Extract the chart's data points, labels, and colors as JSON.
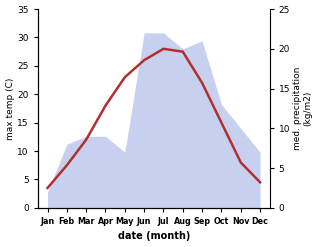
{
  "months": [
    "Jan",
    "Feb",
    "Mar",
    "Apr",
    "May",
    "Jun",
    "Jul",
    "Aug",
    "Sep",
    "Oct",
    "Nov",
    "Dec"
  ],
  "temperature": [
    3.5,
    7.5,
    12.0,
    18.0,
    23.0,
    26.0,
    28.0,
    27.5,
    22.0,
    15.0,
    8.0,
    4.5
  ],
  "precipitation": [
    2.0,
    8.0,
    9.0,
    9.0,
    7.0,
    22.0,
    22.0,
    20.0,
    21.0,
    13.0,
    10.0,
    7.0
  ],
  "temp_color": "#b03030",
  "precip_fill_color": "#c8d0f0",
  "precip_edge_color": "#a0aadd",
  "temp_ylim": [
    0,
    35
  ],
  "temp_yticks": [
    0,
    5,
    10,
    15,
    20,
    25,
    30,
    35
  ],
  "precip_ylim": [
    0,
    25
  ],
  "precip_yticks": [
    0,
    5,
    10,
    15,
    20,
    25
  ],
  "precip_scale_factor": 1.4,
  "ylabel_left": "max temp (C)",
  "ylabel_right": "med. precipitation\n(kg/m2)",
  "xlabel": "date (month)",
  "bg_color": "#ffffff"
}
